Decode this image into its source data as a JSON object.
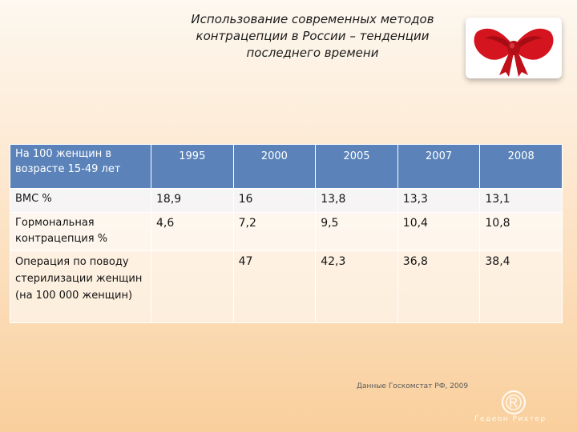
{
  "slide": {
    "title": "Использование современных методов контрацепции в России – тенденции последнего времени",
    "source": "Данные  Госкомстат РФ, 2009",
    "brand": "Гедеон Рихтер"
  },
  "table": {
    "header_label": "На 100 женщин в возрасте 15-49 лет",
    "years": [
      "1995",
      "2000",
      "2005",
      "2007",
      "2008"
    ],
    "rows": [
      {
        "label": "ВМС %",
        "values": [
          "18,9",
          "16",
          "13,8",
          "13,3",
          "13,1"
        ]
      },
      {
        "label": "Гормональная контрацепция %",
        "values": [
          "4,6",
          "7,2",
          "9,5",
          "10,4",
          "10,8"
        ]
      },
      {
        "label": "Операция по поводу стерилизации женщин (на 100 000 женщин)",
        "values": [
          "",
          "47",
          "42,3",
          "36,8",
          "38,4"
        ]
      }
    ]
  },
  "colors": {
    "header_bg": "#5b83b9",
    "bow": "#d4141e"
  },
  "icons": {
    "decoration": "red-bow-icon",
    "logo": "gedeon-richter-logo"
  }
}
